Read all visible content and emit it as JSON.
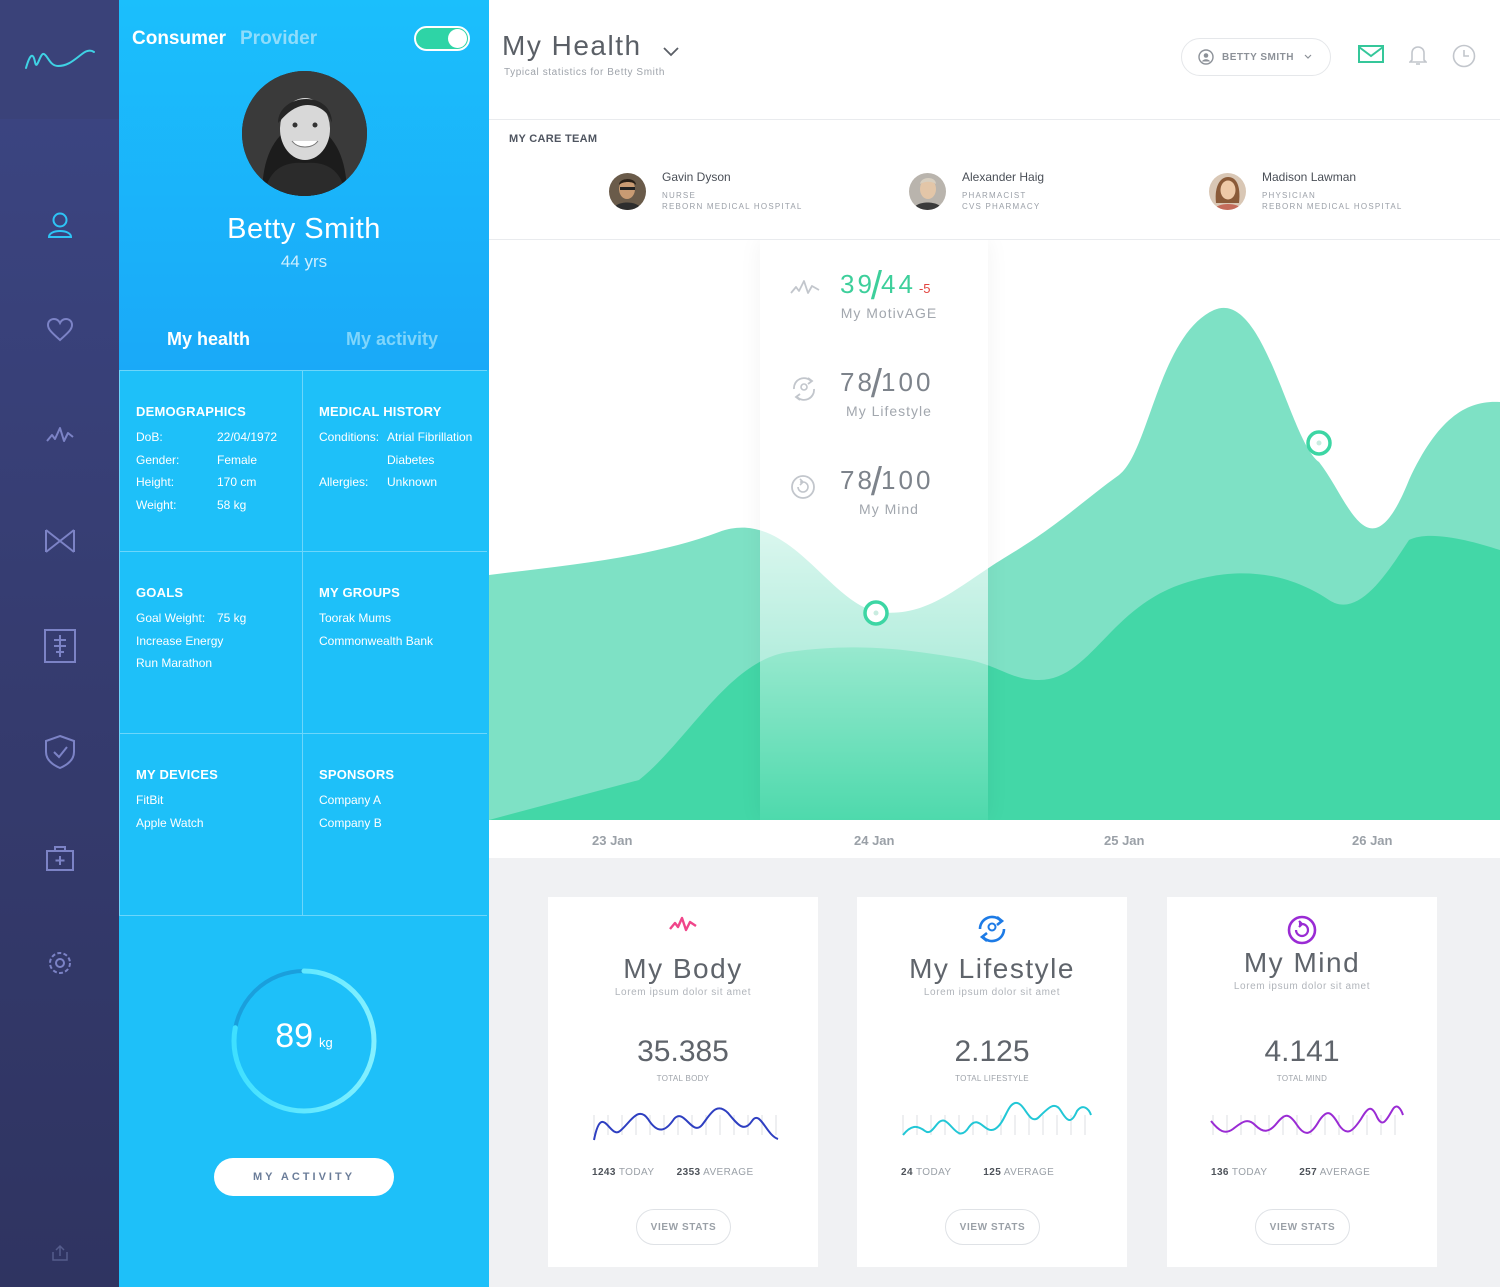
{
  "panel": {
    "mode_tabs": [
      "Consumer",
      "Provider"
    ],
    "name": "Betty Smith",
    "age": "44 yrs",
    "tabs": [
      "My health",
      "My activity"
    ],
    "demographics": {
      "title": "DEMOGRAPHICS",
      "rows": [
        [
          "DoB:",
          "22/04/1972"
        ],
        [
          "Gender:",
          "Female"
        ],
        [
          "Height:",
          "170 cm"
        ],
        [
          "Weight:",
          "58 kg"
        ]
      ]
    },
    "medical_history": {
      "title": "MEDICAL HISTORY",
      "conditions_label": "Conditions:",
      "conditions": [
        "Atrial Fibrillation",
        "Diabetes"
      ],
      "allergies_label": "Allergies:",
      "allergies": "Unknown"
    },
    "goals": {
      "title": "GOALS",
      "goal_weight_label": "Goal Weight:",
      "goal_weight": "75 kg",
      "items": [
        "Increase Energy",
        "Run Marathon"
      ]
    },
    "groups": {
      "title": "MY GROUPS",
      "items": [
        "Toorak Mums",
        "Commonwealth Bank"
      ]
    },
    "devices": {
      "title": "MY DEVICES",
      "items": [
        "FitBit",
        "Apple Watch"
      ]
    },
    "sponsors": {
      "title": "SPONSORS",
      "items": [
        "Company A",
        "Company B"
      ]
    },
    "gauge": {
      "value": "89",
      "unit": "kg",
      "fraction": 0.78
    },
    "activity_button": "MY ACTIVITY"
  },
  "header": {
    "title": "My Health",
    "subtitle": "Typical statistics for Betty Smith",
    "user": "BETTY SMITH"
  },
  "care_team": {
    "title": "MY CARE TEAM",
    "members": [
      {
        "name": "Gavin Dyson",
        "role": "NURSE",
        "org": "REBORN MEDICAL HOSPITAL"
      },
      {
        "name": "Alexander Haig",
        "role": "PHARMACIST",
        "org": "CVS PHARMACY"
      },
      {
        "name": "Madison Lawman",
        "role": "PHYSICIAN",
        "org": "REBORN MEDICAL HOSPITAL"
      }
    ]
  },
  "scores": [
    {
      "a": "39",
      "b": "44",
      "delta": "-5",
      "label": "My MotivAGE"
    },
    {
      "a": "78",
      "b": "100",
      "delta": "",
      "label": "My Lifestyle"
    },
    {
      "a": "78",
      "b": "100",
      "delta": "",
      "label": "My Mind"
    }
  ],
  "chart_data": {
    "type": "area",
    "categories": [
      "23 Jan",
      "24 Jan",
      "25 Jan",
      "26 Jan"
    ],
    "colors": [
      "#7ee1c5",
      "#40d6a5"
    ]
  },
  "cards": [
    {
      "title": "My Body",
      "subtitle": "Lorem ipsum dolor sit amet",
      "value": "35.385",
      "value_label": "TOTAL BODY",
      "today": "1243",
      "today_label": "TODAY",
      "avg": "2353",
      "avg_label": "AVERAGE",
      "button": "VIEW STATS",
      "color": "#2e3fc1",
      "icon_color": "#f0458a"
    },
    {
      "title": "My Lifestyle",
      "subtitle": "Lorem ipsum dolor sit amet",
      "value": "2.125",
      "value_label": "TOTAL LIFESTYLE",
      "today": "24",
      "today_label": "TODAY",
      "avg": "125",
      "avg_label": "AVERAGE",
      "button": "VIEW STATS",
      "color": "#22c7d6",
      "icon_color": "#1d7be6"
    },
    {
      "title": "My Mind",
      "subtitle": "Lorem ipsum dolor sit amet",
      "value": "4.141",
      "value_label": "TOTAL MIND",
      "today": "136",
      "today_label": "TODAY",
      "avg": "257",
      "avg_label": "AVERAGE",
      "button": "VIEW STATS",
      "color": "#9a2bd4",
      "icon_color": "#9a2bd4"
    }
  ]
}
